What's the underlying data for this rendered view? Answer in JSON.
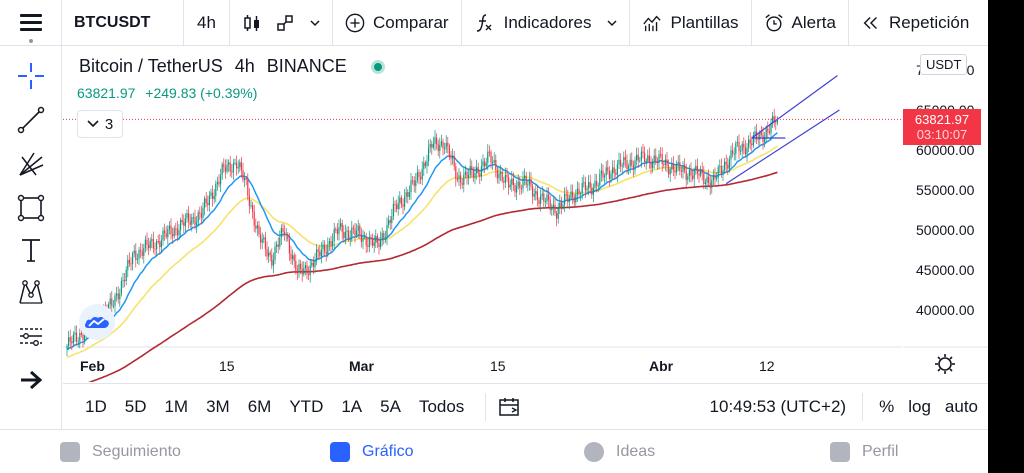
{
  "toolbar": {
    "symbol": "BTCUSDT",
    "interval": "4h",
    "compare_label": "Comparar",
    "indicators_label": "Indicadores",
    "templates_label": "Plantillas",
    "alert_label": "Alerta",
    "replay_label": "Repetición"
  },
  "sidebar": {
    "tools": [
      "crosshair-icon",
      "trend-line-icon",
      "pitchfork-icon",
      "rectangle-icon",
      "text-icon",
      "pattern-icon",
      "prediction-icon",
      "arrow-icon"
    ]
  },
  "legend": {
    "title": "Bitcoin / TetherUS",
    "interval": "4h",
    "exchange": "BINANCE",
    "price": "63821.97",
    "change": "+249.83 (+0.39%)",
    "indicators_count": "3"
  },
  "price_scale": {
    "currency": "USDT",
    "ticks": [
      "70000.00",
      "65000.00",
      "60000.00",
      "55000.00",
      "50000.00",
      "45000.00",
      "40000.00"
    ],
    "last_price": "63821.97",
    "countdown": "03:10:07"
  },
  "time_scale": {
    "ticks": [
      "Feb",
      "15",
      "Mar",
      "15",
      "Abr",
      "12"
    ]
  },
  "range_bar": {
    "ranges": [
      "1D",
      "5D",
      "1M",
      "3M",
      "6M",
      "YTD",
      "1A",
      "5A",
      "Todos"
    ],
    "time": "10:49:53 (UTC+2)",
    "percent": "%",
    "log": "log",
    "auto": "auto"
  },
  "bottom_nav": {
    "watchlist": "Seguimiento",
    "chart": "Gráfico",
    "ideas": "Ideas",
    "profile": "Perfil"
  },
  "colors": {
    "up": "#089981",
    "down": "#f23645",
    "ema_fast": "#2196f3",
    "ema_mid": "#f7e26b",
    "ema_slow": "#b22833",
    "channel": "#3f3fd6",
    "accent": "#2962ff"
  },
  "chart_data": {
    "type": "candlestick",
    "ylim": [
      35000,
      72000
    ],
    "y_ticks": [
      70000,
      65000,
      60000,
      55000,
      50000,
      45000,
      40000
    ],
    "x_ticks": [
      "Feb",
      "15",
      "Mar",
      "15",
      "Abr",
      "12"
    ],
    "anchors": [
      [
        0,
        35500
      ],
      [
        14,
        38000
      ],
      [
        28,
        40500
      ],
      [
        42,
        47000
      ],
      [
        56,
        48500
      ],
      [
        70,
        50500
      ],
      [
        84,
        52000
      ],
      [
        98,
        57500
      ],
      [
        106,
        58500
      ],
      [
        112,
        55500
      ],
      [
        120,
        49000
      ],
      [
        128,
        46500
      ],
      [
        136,
        50000
      ],
      [
        144,
        44500
      ],
      [
        152,
        45500
      ],
      [
        160,
        47500
      ],
      [
        170,
        50000
      ],
      [
        182,
        49500
      ],
      [
        194,
        48000
      ],
      [
        206,
        53000
      ],
      [
        218,
        56000
      ],
      [
        228,
        60500
      ],
      [
        236,
        61000
      ],
      [
        244,
        56500
      ],
      [
        254,
        57000
      ],
      [
        264,
        59000
      ],
      [
        276,
        55500
      ],
      [
        286,
        56000
      ],
      [
        296,
        54000
      ],
      [
        306,
        52500
      ],
      [
        316,
        54500
      ],
      [
        328,
        55500
      ],
      [
        340,
        57500
      ],
      [
        352,
        58500
      ],
      [
        362,
        59000
      ],
      [
        372,
        58500
      ],
      [
        382,
        57500
      ],
      [
        394,
        57000
      ],
      [
        404,
        56000
      ],
      [
        410,
        58000
      ],
      [
        418,
        60000
      ],
      [
        428,
        61000
      ],
      [
        438,
        62500
      ],
      [
        444,
        63821.97
      ]
    ]
  }
}
